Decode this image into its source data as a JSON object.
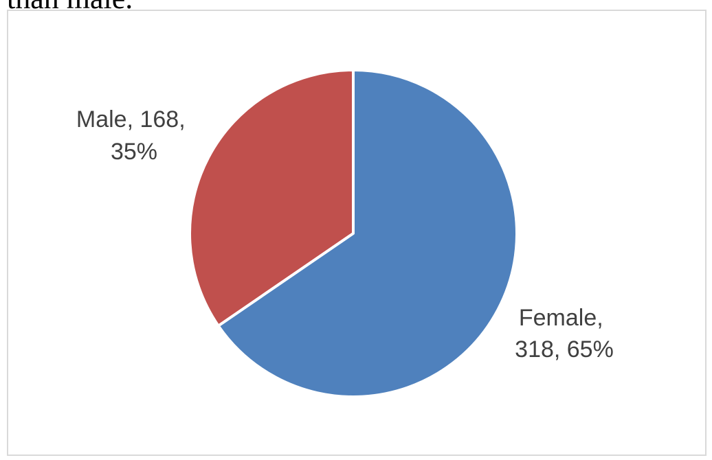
{
  "page": {
    "top_text": "than male."
  },
  "chart_data": {
    "type": "pie",
    "categories": [
      "Male",
      "Female"
    ],
    "values": [
      168,
      318
    ],
    "percents": [
      "35%",
      "65%"
    ],
    "colors": [
      "#c0504d",
      "#4f81bd"
    ],
    "labels": [
      {
        "lines": [
          "Male, 168,",
          "35%"
        ]
      },
      {
        "lines": [
          "Female,",
          "318, 65%"
        ]
      }
    ],
    "title": "",
    "legend": "none",
    "start_angle_deg": 0,
    "direction": "counterclockwise-first-slice"
  }
}
